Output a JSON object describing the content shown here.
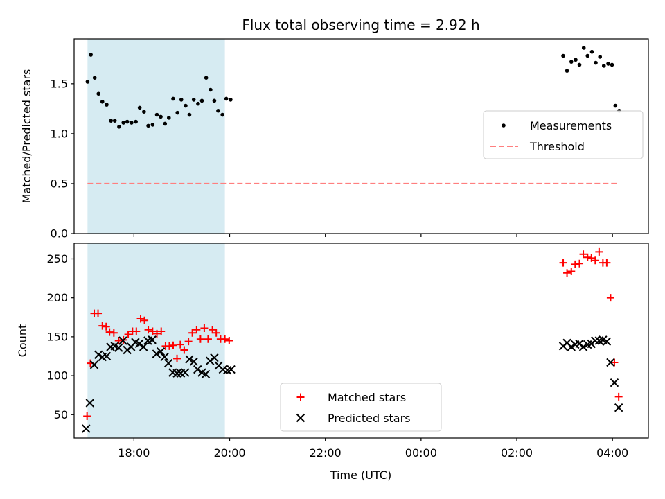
{
  "chart_data": {
    "type": "scatter",
    "title": "Flux total observing time = 2.92 h",
    "xlabel": "Time (UTC)",
    "x_unit": "hours since 00:00 of first day",
    "xlim": [
      16.75,
      28.75
    ],
    "xticks": [
      18,
      20,
      22,
      24,
      26,
      28
    ],
    "xtick_labels": [
      "18:00",
      "20:00",
      "22:00",
      "00:00",
      "02:00",
      "04:00"
    ],
    "highlight_span": [
      17.03,
      19.9
    ],
    "highlight_color": "#add8e6",
    "panels": [
      {
        "name": "ratio",
        "ylabel": "Matched/Predicted stars",
        "ylim": [
          0,
          1.95
        ],
        "yticks": [
          0.0,
          0.5,
          1.0,
          1.5
        ],
        "ytick_labels": [
          "0.0",
          "0.5",
          "1.0",
          "1.5"
        ],
        "legend": {
          "position": "center-right",
          "entries": [
            "Measurements",
            "Threshold"
          ]
        },
        "series": [
          {
            "name": "Measurements",
            "kind": "scatter",
            "marker": "dot",
            "color": "#000000",
            "points": [
              [
                17.03,
                1.52
              ],
              [
                17.1,
                1.79
              ],
              [
                17.18,
                1.56
              ],
              [
                17.26,
                1.4
              ],
              [
                17.34,
                1.32
              ],
              [
                17.43,
                1.29
              ],
              [
                17.52,
                1.13
              ],
              [
                17.6,
                1.13
              ],
              [
                17.69,
                1.07
              ],
              [
                17.78,
                1.11
              ],
              [
                17.86,
                1.12
              ],
              [
                17.95,
                1.11
              ],
              [
                18.04,
                1.12
              ],
              [
                18.12,
                1.26
              ],
              [
                18.21,
                1.22
              ],
              [
                18.3,
                1.08
              ],
              [
                18.39,
                1.09
              ],
              [
                18.48,
                1.19
              ],
              [
                18.56,
                1.17
              ],
              [
                18.65,
                1.1
              ],
              [
                18.73,
                1.16
              ],
              [
                18.82,
                1.35
              ],
              [
                18.91,
                1.21
              ],
              [
                18.99,
                1.34
              ],
              [
                19.08,
                1.28
              ],
              [
                19.16,
                1.19
              ],
              [
                19.25,
                1.34
              ],
              [
                19.34,
                1.3
              ],
              [
                19.42,
                1.33
              ],
              [
                19.51,
                1.56
              ],
              [
                19.6,
                1.44
              ],
              [
                19.68,
                1.33
              ],
              [
                19.76,
                1.23
              ],
              [
                19.85,
                1.19
              ],
              [
                19.93,
                1.35
              ],
              [
                20.02,
                1.34
              ],
              [
                26.97,
                1.78
              ],
              [
                27.05,
                1.63
              ],
              [
                27.14,
                1.72
              ],
              [
                27.23,
                1.74
              ],
              [
                27.31,
                1.69
              ],
              [
                27.4,
                1.86
              ],
              [
                27.48,
                1.78
              ],
              [
                27.57,
                1.82
              ],
              [
                27.65,
                1.71
              ],
              [
                27.74,
                1.77
              ],
              [
                27.82,
                1.68
              ],
              [
                27.91,
                1.7
              ],
              [
                27.99,
                1.69
              ],
              [
                28.06,
                1.28
              ],
              [
                28.14,
                1.23
              ]
            ]
          },
          {
            "name": "Threshold",
            "kind": "line",
            "style": "dashed",
            "color": "#ff7f7f",
            "points": [
              [
                17.03,
                0.5
              ],
              [
                28.14,
                0.5
              ]
            ]
          }
        ]
      },
      {
        "name": "counts",
        "ylabel": "Count",
        "ylim": [
          20,
          270
        ],
        "yticks": [
          50,
          100,
          150,
          200,
          250
        ],
        "ytick_labels": [
          "50",
          "100",
          "150",
          "200",
          "250"
        ],
        "legend": {
          "position": "lower-center",
          "entries": [
            "Matched stars",
            "Predicted stars"
          ]
        },
        "series": [
          {
            "name": "Matched stars",
            "kind": "scatter",
            "marker": "plus",
            "color": "#ff0000",
            "points": [
              [
                17.02,
                48
              ],
              [
                17.09,
                116
              ],
              [
                17.17,
                180
              ],
              [
                17.25,
                180
              ],
              [
                17.34,
                164
              ],
              [
                17.42,
                163
              ],
              [
                17.49,
                156
              ],
              [
                17.58,
                155
              ],
              [
                17.68,
                145
              ],
              [
                17.78,
                146
              ],
              [
                17.88,
                153
              ],
              [
                17.97,
                157
              ],
              [
                18.05,
                157
              ],
              [
                18.14,
                173
              ],
              [
                18.22,
                171
              ],
              [
                18.3,
                159
              ],
              [
                18.39,
                157
              ],
              [
                18.48,
                154
              ],
              [
                18.57,
                157
              ],
              [
                18.66,
                138
              ],
              [
                18.74,
                138
              ],
              [
                18.82,
                139
              ],
              [
                18.9,
                122
              ],
              [
                18.97,
                140
              ],
              [
                19.05,
                133
              ],
              [
                19.14,
                144
              ],
              [
                19.22,
                155
              ],
              [
                19.31,
                159
              ],
              [
                19.39,
                147
              ],
              [
                19.47,
                161
              ],
              [
                19.55,
                147
              ],
              [
                19.64,
                159
              ],
              [
                19.72,
                155
              ],
              [
                19.81,
                147
              ],
              [
                19.9,
                147
              ],
              [
                19.99,
                145
              ],
              [
                26.97,
                245
              ],
              [
                27.05,
                232
              ],
              [
                27.14,
                234
              ],
              [
                27.22,
                243
              ],
              [
                27.31,
                244
              ],
              [
                27.39,
                256
              ],
              [
                27.48,
                252
              ],
              [
                27.56,
                251
              ],
              [
                27.64,
                248
              ],
              [
                27.72,
                259
              ],
              [
                27.8,
                245
              ],
              [
                27.88,
                245
              ],
              [
                27.96,
                200
              ],
              [
                28.04,
                117
              ],
              [
                28.13,
                73
              ]
            ]
          },
          {
            "name": "Predicted stars",
            "kind": "scatter",
            "marker": "x",
            "color": "#000000",
            "points": [
              [
                17.0,
                32
              ],
              [
                17.08,
                65
              ],
              [
                17.17,
                114
              ],
              [
                17.26,
                127
              ],
              [
                17.34,
                124
              ],
              [
                17.43,
                125
              ],
              [
                17.51,
                137
              ],
              [
                17.6,
                138
              ],
              [
                17.68,
                136
              ],
              [
                17.77,
                145
              ],
              [
                17.86,
                133
              ],
              [
                17.94,
                137
              ],
              [
                18.03,
                143
              ],
              [
                18.11,
                141
              ],
              [
                18.2,
                137
              ],
              [
                18.29,
                145
              ],
              [
                18.38,
                146
              ],
              [
                18.47,
                128
              ],
              [
                18.56,
                131
              ],
              [
                18.64,
                124
              ],
              [
                18.72,
                116
              ],
              [
                18.81,
                104
              ],
              [
                18.9,
                103
              ],
              [
                18.98,
                103
              ],
              [
                19.07,
                104
              ],
              [
                19.16,
                121
              ],
              [
                19.25,
                118
              ],
              [
                19.33,
                108
              ],
              [
                19.42,
                104
              ],
              [
                19.5,
                102
              ],
              [
                19.59,
                119
              ],
              [
                19.68,
                123
              ],
              [
                19.77,
                113
              ],
              [
                19.86,
                108
              ],
              [
                19.95,
                107
              ],
              [
                20.03,
                108
              ],
              [
                26.97,
                138
              ],
              [
                27.05,
                142
              ],
              [
                27.14,
                137
              ],
              [
                27.22,
                140
              ],
              [
                27.31,
                141
              ],
              [
                27.39,
                137
              ],
              [
                27.48,
                140
              ],
              [
                27.56,
                141
              ],
              [
                27.64,
                145
              ],
              [
                27.72,
                145
              ],
              [
                27.8,
                146
              ],
              [
                27.88,
                144
              ],
              [
                27.96,
                117
              ],
              [
                28.04,
                91
              ],
              [
                28.13,
                59
              ]
            ]
          }
        ]
      }
    ]
  }
}
